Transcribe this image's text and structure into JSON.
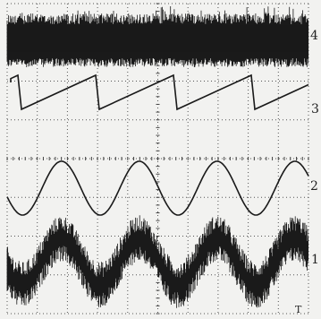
{
  "traces": [
    {
      "label": "4"
    },
    {
      "label": "3"
    },
    {
      "label": "2"
    },
    {
      "label": "1"
    }
  ],
  "trigger_marker": "T"
}
